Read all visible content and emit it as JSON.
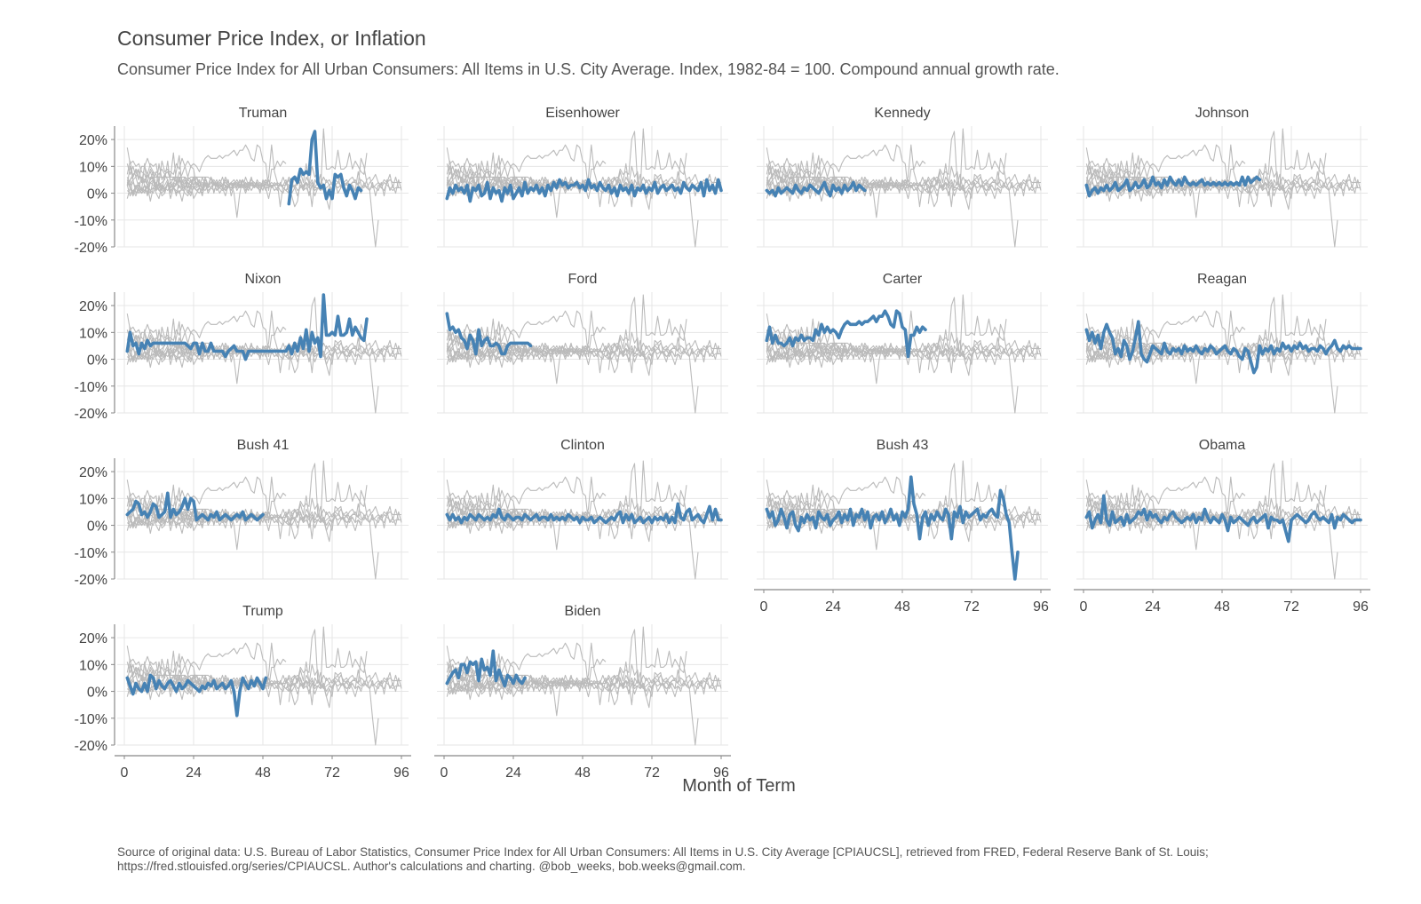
{
  "title": "Consumer Price Index, or Inflation",
  "subtitle": "Consumer Price Index for All Urban Consumers: All Items in U.S. City Average. Index, 1982-84 = 100. Compound annual growth rate.",
  "caption": "Source of original data: U.S. Bureau of Labor Statistics, Consumer Price Index for All Urban Consumers: All Items in U.S. City Average [CPIAUCSL], retrieved from FRED, Federal Reserve Bank of St. Louis; https://fred.stlouisfed.org/series/CPIAUCSL. Author's calculations and charting. @bob_weeks, bob.weeks@gmail.com.",
  "colors": {
    "highlight": "#4682b4",
    "background_series": "#bbbbbb",
    "grid": "#e6e6e6",
    "axis": "#888888"
  },
  "chart_data": {
    "type": "line",
    "facet_by": "president",
    "xlabel": "Month of Term",
    "ylabel": "",
    "xlim": [
      0,
      96
    ],
    "ylim": [
      -20,
      25
    ],
    "x_ticks": [
      0,
      24,
      48,
      72,
      96
    ],
    "y_ticks": [
      -20,
      -10,
      0,
      10,
      20
    ],
    "y_tick_labels": [
      "-20%",
      "-10%",
      "0%",
      "10%",
      "20%"
    ],
    "grid": true,
    "legend": "none",
    "panels": [
      {
        "name": "Truman",
        "x_start": 57,
        "values": [
          -4,
          5,
          6,
          4,
          9,
          7,
          8,
          7,
          20,
          23,
          4,
          2,
          3,
          -2,
          1,
          -2,
          7,
          6,
          7,
          2,
          -1,
          3,
          1,
          -2,
          2,
          1
        ]
      },
      {
        "name": "Eisenhower",
        "x_start": 1,
        "values": [
          -2,
          2,
          0,
          3,
          1,
          2,
          0,
          3,
          -3,
          2,
          1,
          3,
          -1,
          0,
          4,
          -2,
          2,
          0,
          1,
          -3,
          2,
          0,
          3,
          -2,
          0,
          2,
          -1,
          4,
          0,
          2,
          1,
          3,
          0,
          2,
          -1,
          3,
          1,
          4,
          2,
          5,
          3,
          4,
          2,
          3,
          3,
          4,
          2,
          3,
          1,
          5,
          2,
          3,
          1,
          4,
          2,
          1,
          3,
          0,
          2,
          -1,
          3,
          1,
          2,
          0,
          3,
          -1,
          2,
          1,
          3,
          0,
          2,
          1,
          4,
          0,
          2,
          3,
          1,
          2,
          3,
          1,
          2,
          0,
          4,
          2,
          1,
          3,
          2,
          1,
          4,
          -1,
          5,
          1,
          3,
          0,
          5,
          1
        ]
      },
      {
        "name": "Kennedy",
        "x_start": 1,
        "values": [
          1,
          0,
          1,
          -1,
          2,
          0,
          1,
          2,
          1,
          0,
          3,
          1,
          0,
          2,
          1,
          3,
          2,
          1,
          0,
          2,
          4,
          1,
          -1,
          3,
          1,
          2,
          0,
          3,
          1,
          2,
          4,
          1,
          3,
          2,
          1
        ]
      },
      {
        "name": "Johnson",
        "x_start": 1,
        "values": [
          3,
          -1,
          1,
          2,
          0,
          2,
          1,
          3,
          1,
          2,
          4,
          1,
          2,
          3,
          5,
          1,
          2,
          4,
          2,
          3,
          5,
          2,
          3,
          6,
          3,
          4,
          2,
          5,
          3,
          6,
          4,
          3,
          5,
          3,
          6,
          4,
          3,
          4,
          3,
          4,
          5,
          3,
          4,
          3,
          4,
          3,
          4,
          3,
          4,
          3,
          4,
          3,
          4,
          3,
          6,
          3,
          6,
          4,
          5,
          6,
          5
        ]
      },
      {
        "name": "Nixon",
        "x_start": 1,
        "values": [
          3,
          10,
          5,
          6,
          2,
          6,
          4,
          7,
          5,
          6,
          6,
          6,
          6,
          6,
          6,
          6,
          6,
          6,
          6,
          6,
          6,
          5,
          4,
          6,
          6,
          2,
          6,
          3,
          3,
          6,
          3,
          3,
          3,
          3,
          1,
          3,
          4,
          5,
          3,
          3,
          3,
          0,
          3,
          3,
          3,
          3,
          3,
          3,
          3,
          3,
          3,
          3,
          3,
          3,
          3,
          3,
          5,
          2,
          6,
          3,
          8,
          4,
          11,
          3,
          10,
          6,
          8,
          1,
          24,
          9,
          9,
          10,
          9,
          16,
          9,
          9,
          10,
          15,
          9,
          12,
          10,
          8,
          7,
          15
        ]
      },
      {
        "name": "Ford",
        "x_start": 1,
        "values": [
          17,
          11,
          12,
          10,
          11,
          8,
          7,
          4,
          9,
          7,
          2,
          11,
          5,
          7,
          8,
          5,
          5,
          6,
          5,
          2,
          2,
          5,
          6,
          6,
          6,
          6,
          6,
          6,
          6,
          5
        ]
      },
      {
        "name": "Carter",
        "x_start": 1,
        "values": [
          7,
          12,
          6,
          9,
          6,
          6,
          5,
          6,
          8,
          5,
          8,
          7,
          9,
          7,
          8,
          8,
          7,
          11,
          9,
          13,
          10,
          12,
          10,
          11,
          10,
          8,
          11,
          13,
          14,
          13,
          13,
          13,
          14,
          13,
          14,
          14,
          15,
          16,
          14,
          16,
          16,
          18,
          16,
          13,
          12,
          18,
          17,
          12,
          11,
          1,
          9,
          9,
          12,
          10,
          12,
          11
        ]
      },
      {
        "name": "Reagan",
        "x_start": 1,
        "values": [
          11,
          7,
          10,
          6,
          9,
          4,
          10,
          13,
          10,
          8,
          2,
          4,
          1,
          7,
          5,
          0,
          3,
          8,
          14,
          2,
          0,
          -1,
          2,
          5,
          4,
          3,
          2,
          6,
          3,
          2,
          4,
          3,
          4,
          2,
          5,
          3,
          4,
          3,
          5,
          3,
          2,
          4,
          3,
          5,
          4,
          2,
          3,
          4,
          5,
          3,
          2,
          4,
          3,
          1,
          0,
          4,
          3,
          -1,
          -5,
          -3,
          5,
          2,
          4,
          3,
          5,
          2,
          4,
          3,
          6,
          4,
          5,
          3,
          5,
          4,
          6,
          4,
          5,
          3,
          4,
          4,
          3,
          5,
          4,
          2,
          4,
          5,
          7,
          4,
          3,
          5,
          4,
          5,
          4,
          4,
          4,
          4
        ]
      },
      {
        "name": "Bush 41",
        "x_start": 1,
        "values": [
          4,
          5,
          6,
          9,
          8,
          4,
          5,
          3,
          5,
          8,
          7,
          3,
          4,
          5,
          12,
          3,
          6,
          4,
          5,
          7,
          10,
          6,
          10,
          9,
          2,
          3,
          4,
          3,
          2,
          4,
          3,
          5,
          2,
          3,
          4,
          3,
          2,
          3,
          4,
          3,
          5,
          2,
          3,
          4,
          3,
          2,
          3,
          4
        ]
      },
      {
        "name": "Clinton",
        "x_start": 1,
        "values": [
          4,
          2,
          4,
          2,
          3,
          1,
          3,
          2,
          4,
          3,
          2,
          4,
          3,
          2,
          3,
          2,
          4,
          3,
          6,
          3,
          2,
          4,
          3,
          2,
          3,
          3,
          2,
          4,
          3,
          2,
          3,
          4,
          2,
          3,
          3,
          2,
          4,
          2,
          3,
          2,
          3,
          2,
          4,
          3,
          2,
          3,
          1,
          3,
          2,
          2,
          3,
          1,
          2,
          3,
          2,
          1,
          2,
          3,
          2,
          4,
          5,
          1,
          4,
          2,
          4,
          1,
          2,
          3,
          1,
          2,
          3,
          1,
          3,
          2,
          3,
          2,
          4,
          1,
          3,
          1,
          8,
          3,
          2,
          5,
          6,
          2,
          3,
          4,
          2,
          1,
          4,
          7,
          2,
          6,
          2,
          2
        ]
      },
      {
        "name": "Bush 43",
        "x_start": 1,
        "values": [
          6,
          3,
          5,
          0,
          2,
          6,
          3,
          -1,
          4,
          5,
          0,
          -2,
          3,
          1,
          4,
          2,
          3,
          -1,
          5,
          3,
          2,
          4,
          0,
          2,
          3,
          5,
          1,
          4,
          2,
          6,
          0,
          4,
          3,
          6,
          2,
          5,
          -1,
          3,
          4,
          2,
          5,
          1,
          3,
          6,
          2,
          4,
          0,
          5,
          3,
          6,
          18,
          8,
          4,
          -5,
          3,
          5,
          0,
          4,
          2,
          5,
          3,
          2,
          6,
          4,
          -5,
          5,
          3,
          7,
          1,
          5,
          3,
          4,
          5,
          6,
          2,
          4,
          3,
          5,
          6,
          4,
          3,
          13,
          10,
          4,
          1,
          -10,
          -20,
          -10
        ]
      },
      {
        "name": "Obama",
        "x_start": 1,
        "values": [
          3,
          5,
          -1,
          2,
          4,
          1,
          11,
          2,
          0,
          5,
          1,
          2,
          3,
          0,
          4,
          1,
          2,
          3,
          5,
          4,
          6,
          2,
          5,
          3,
          4,
          2,
          1,
          3,
          2,
          4,
          5,
          3,
          2,
          1,
          2,
          3,
          2,
          4,
          1,
          3,
          2,
          6,
          3,
          1,
          3,
          2,
          1,
          4,
          2,
          -2,
          3,
          1,
          2,
          3,
          2,
          1,
          0,
          2,
          3,
          1,
          2,
          3,
          4,
          -1,
          3,
          2,
          2,
          1,
          2,
          -2,
          -6,
          2,
          3,
          4,
          3,
          2,
          1,
          2,
          4,
          5,
          3,
          2,
          3,
          2,
          1,
          4,
          -1,
          3,
          2,
          4,
          3,
          2,
          1,
          2,
          2,
          2
        ]
      },
      {
        "name": "Trump",
        "x_start": 1,
        "values": [
          5,
          2,
          -1,
          3,
          1,
          0,
          3,
          0,
          6,
          5,
          1,
          4,
          2,
          1,
          3,
          4,
          2,
          0,
          3,
          1,
          2,
          4,
          3,
          2,
          1,
          0,
          2,
          1,
          3,
          2,
          4,
          1,
          2,
          3,
          1,
          2,
          4,
          0,
          -9,
          0,
          5,
          3,
          1,
          4,
          2,
          5,
          3,
          1,
          5
        ]
      },
      {
        "name": "Biden",
        "x_start": 1,
        "values": [
          3,
          5,
          7,
          8,
          5,
          10,
          10,
          7,
          11,
          10,
          11,
          4,
          12,
          8,
          9,
          6,
          15,
          4,
          8,
          5,
          2,
          6,
          5,
          3,
          6,
          4,
          3,
          5
        ]
      }
    ]
  }
}
